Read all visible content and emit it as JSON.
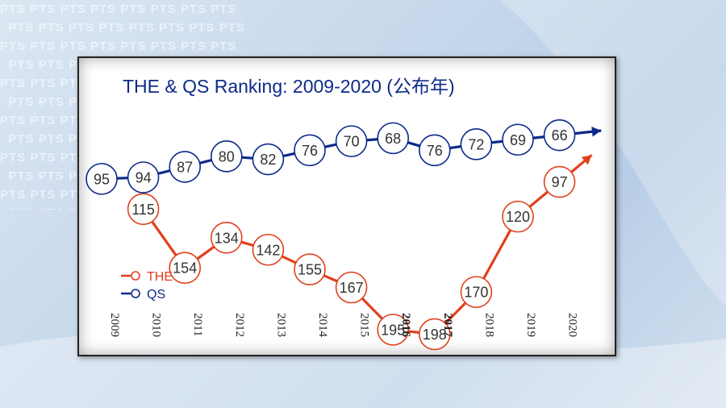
{
  "watermark": {
    "text": "PTS"
  },
  "colors": {
    "the": "#e0401c",
    "qs": "#0d2a8a",
    "title": "#0d2a8a"
  },
  "chart_data": {
    "type": "line",
    "title": "THE & QS Ranking: 2009-2020 (公布年)",
    "x": [
      "2009",
      "2010",
      "2011",
      "2012",
      "2013",
      "2014",
      "2015",
      "2016",
      "2017",
      "2018",
      "2019",
      "2020"
    ],
    "series": [
      {
        "name": "THE",
        "x": [
          "2010",
          "2011",
          "2012",
          "2013",
          "2014",
          "2015",
          "2016",
          "2017",
          "2018",
          "2019",
          "2020"
        ],
        "values": [
          115,
          154,
          134,
          142,
          155,
          167,
          195,
          198,
          170,
          120,
          97
        ]
      },
      {
        "name": "QS",
        "x": [
          "2009",
          "2010",
          "2011",
          "2012",
          "2013",
          "2014",
          "2015",
          "2016",
          "2017",
          "2018",
          "2019",
          "2020"
        ],
        "values": [
          95,
          94,
          87,
          80,
          82,
          76,
          70,
          68,
          76,
          72,
          69,
          66
        ]
      }
    ],
    "legend": "bottom-left",
    "grid": false
  }
}
